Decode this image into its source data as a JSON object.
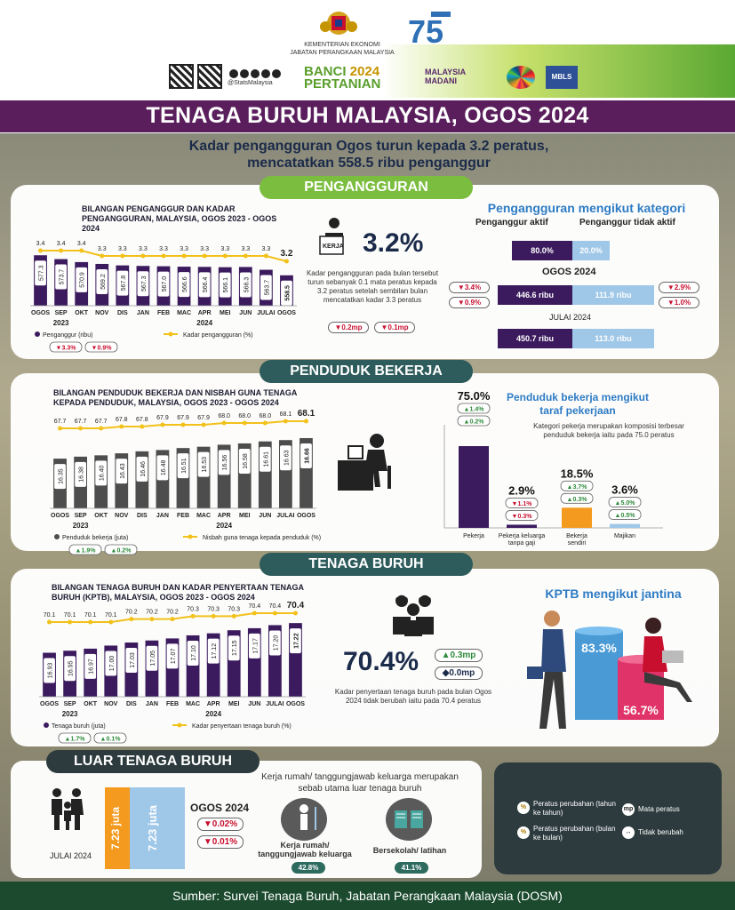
{
  "header": {
    "org_line1": "KEMENTERIAN EKONOMI",
    "org_line2": "JABATAN PERANGKAAN MALAYSIA",
    "dosm75": "75",
    "social": "@StatsMalaysia",
    "banci_line1": "BANCI",
    "banci_year": "2024",
    "banci_line2": "PERTANIAN",
    "madani_line1": "MALAYSIA",
    "madani_line2": "MADANI",
    "mbls": "MBLS"
  },
  "title": "TENAGA BURUH MALAYSIA, OGOS 2024",
  "subtitle_line1": "Kadar pengangguran Ogos turun kepada 3.2 peratus,",
  "subtitle_line2": "mencatatkan 558.5 ribu penganggur",
  "colors": {
    "purple": "#3b1b5e",
    "gray": "#4d4d4d",
    "yellow": "#f2c11a",
    "green_pill": "#7bbd3f",
    "teal_pill": "#2e5b5b",
    "light_blue": "#9fc7e8",
    "orange": "#f49a1e",
    "blue_person": "#4a9ad6",
    "pink": "#e0336a"
  },
  "sections": {
    "penganggur": "PENGANGGURAN",
    "bekerja": "PENDUDUK BEKERJA",
    "buruh": "TENAGA BURUH",
    "luar": "LUAR TENAGA BURUH"
  },
  "chart_data": [
    {
      "type": "bar+line",
      "title": "BILANGAN PENGANGGUR DAN KADAR PENGANGGURAN, MALAYSIA, OGOS 2023 - OGOS 2024",
      "categories": [
        "OGOS",
        "SEP",
        "OKT",
        "NOV",
        "DIS",
        "JAN",
        "FEB",
        "MAC",
        "APR",
        "MEI",
        "JUN",
        "JULAI",
        "OGOS"
      ],
      "year_labels": [
        "2023",
        "2024"
      ],
      "bar_series": {
        "name": "Penganggur (ribu)",
        "values": [
          577.3,
          573.7,
          570.9,
          569.2,
          567.8,
          567.3,
          567.0,
          566.6,
          566.4,
          566.1,
          566.3,
          563.7,
          558.5
        ],
        "labels": [
          "577.3",
          "573.7",
          "570.9",
          "569.2",
          "567.8",
          "567.3",
          "567.0",
          "566.6",
          "566.4",
          "566.1",
          "566.3",
          "563.7",
          "558.5"
        ]
      },
      "line_series": {
        "name": "Kadar pengangguran (%)",
        "values": [
          3.4,
          3.4,
          3.4,
          3.3,
          3.3,
          3.3,
          3.3,
          3.3,
          3.3,
          3.3,
          3.3,
          3.3,
          3.2
        ],
        "labels": [
          "3.4",
          "3.4",
          "3.4",
          "3.3",
          "3.3",
          "3.3",
          "3.3",
          "3.3",
          "3.3",
          "3.3",
          "3.3",
          "3.3",
          "3.2"
        ]
      },
      "badges": [
        {
          "dir": "down",
          "text": "3.3%"
        },
        {
          "dir": "down",
          "text": "0.9%"
        }
      ]
    },
    {
      "type": "bar+line",
      "title": "BILANGAN PENDUDUK BEKERJA DAN NISBAH GUNA TENAGA KEPADA PENDUDUK, MALAYSIA, OGOS 2023 - OGOS 2024",
      "categories": [
        "OGOS",
        "SEP",
        "OKT",
        "NOV",
        "DIS",
        "JAN",
        "FEB",
        "MAC",
        "APR",
        "MEI",
        "JUN",
        "JULAI",
        "OGOS"
      ],
      "year_labels": [
        "2023",
        "2024"
      ],
      "bar_series": {
        "name": "Penduduk bekerja (juta)",
        "values": [
          16.35,
          16.38,
          16.4,
          16.43,
          16.46,
          16.48,
          16.51,
          16.53,
          16.56,
          16.58,
          16.61,
          16.63,
          16.66
        ],
        "labels": [
          "16.35",
          "16.38",
          "16.40",
          "16.43",
          "16.46",
          "16.48",
          "16.51",
          "16.53",
          "16.56",
          "16.58",
          "16.61",
          "16.63",
          "16.66"
        ]
      },
      "line_series": {
        "name": "Nisbah guna tenaga kepada penduduk (%)",
        "values": [
          67.7,
          67.7,
          67.7,
          67.8,
          67.8,
          67.9,
          67.9,
          67.9,
          68.0,
          68.0,
          68.0,
          68.1,
          68.1
        ],
        "labels": [
          "67.7",
          "67.7",
          "67.7",
          "67.8",
          "67.8",
          "67.9",
          "67.9",
          "67.9",
          "68.0",
          "68.0",
          "68.0",
          "68.1",
          "68.1"
        ]
      },
      "badges": [
        {
          "dir": "up",
          "text": "1.9%"
        },
        {
          "dir": "up",
          "text": "0.2%"
        }
      ]
    },
    {
      "type": "bar+line",
      "title": "BILANGAN TENAGA BURUH DAN KADAR PENYERTAAN TENAGA BURUH (KPTB), MALAYSIA, OGOS 2023 - OGOS 2024",
      "categories": [
        "OGOS",
        "SEP",
        "OKT",
        "NOV",
        "DIS",
        "JAN",
        "FEB",
        "MAC",
        "APR",
        "MEI",
        "JUN",
        "JULAI",
        "OGOS"
      ],
      "year_labels": [
        "2023",
        "2024"
      ],
      "bar_series": {
        "name": "Tenaga buruh (juta)",
        "values": [
          16.93,
          16.95,
          16.97,
          17.0,
          17.03,
          17.05,
          17.07,
          17.1,
          17.12,
          17.15,
          17.17,
          17.2,
          17.22
        ],
        "labels": [
          "16.93",
          "16.95",
          "16.97",
          "17.00",
          "17.03",
          "17.05",
          "17.07",
          "17.10",
          "17.12",
          "17.15",
          "17.17",
          "17.20",
          "17.22"
        ]
      },
      "line_series": {
        "name": "Kadar penyertaan tenaga buruh (%)",
        "values": [
          70.1,
          70.1,
          70.1,
          70.1,
          70.2,
          70.2,
          70.2,
          70.3,
          70.3,
          70.3,
          70.4,
          70.4,
          70.4
        ],
        "labels": [
          "70.1",
          "70.1",
          "70.1",
          "70.1",
          "70.2",
          "70.2",
          "70.2",
          "70.3",
          "70.3",
          "70.3",
          "70.4",
          "70.4",
          "70.4"
        ]
      },
      "badges": [
        {
          "dir": "up",
          "text": "1.7%"
        },
        {
          "dir": "up",
          "text": "0.1%"
        }
      ]
    }
  ],
  "unemp": {
    "rate": "3.2%",
    "desc": "Kadar pengangguran pada bulan tersebut turun sebanyak 0.1 mata peratus kepada 3.2 peratus setelah sembilan bulan mencatatkan kadar 3.3 peratus",
    "badge1": "0.2mp",
    "badge2": "0.1mp",
    "kerja": "KERJA",
    "cat_title": "Pengangguran mengikut kategori",
    "active_label": "Penganggur aktif",
    "inactive_label": "Penganggur tidak aktif",
    "active_pct": "80.0%",
    "inactive_pct": "20.0%",
    "aug_label": "OGOS 2024",
    "aug_active": "446.6 ribu",
    "aug_inactive": "111.9 ribu",
    "jul_label": "JULAI 2024",
    "jul_active": "450.7 ribu",
    "jul_inactive": "113.0 ribu",
    "left_b1": "3.4%",
    "left_b2": "0.9%",
    "right_b1": "2.9%",
    "right_b2": "1.0%"
  },
  "emp": {
    "cat_title_1": "Penduduk bekerja mengikut",
    "cat_title_2": "taraf pekerjaan",
    "desc": "Kategori pekerja merupakan komposisi terbesar penduduk bekerja iaitu pada 75.0 peratus",
    "bars": [
      {
        "pct": "75.0%",
        "value": 75.0,
        "label": "Pekerja",
        "color": "#3b1b5e",
        "b1": {
          "dir": "up",
          "t": "1.4%"
        },
        "b2": {
          "dir": "up",
          "t": "0.2%"
        }
      },
      {
        "pct": "2.9%",
        "value": 2.9,
        "label": "Pekerja keluarga tanpa gaji",
        "color": "#3b1b5e",
        "b1": {
          "dir": "down",
          "t": "1.1%"
        },
        "b2": {
          "dir": "down",
          "t": "0.3%"
        }
      },
      {
        "pct": "18.5%",
        "value": 18.5,
        "label": "Bekerja sendiri",
        "color": "#f49a1e",
        "b1": {
          "dir": "up",
          "t": "3.7%"
        },
        "b2": {
          "dir": "up",
          "t": "0.3%"
        }
      },
      {
        "pct": "3.6%",
        "value": 3.6,
        "label": "Majikan",
        "color": "#9fc7e8",
        "b1": {
          "dir": "up",
          "t": "5.0%"
        },
        "b2": {
          "dir": "up",
          "t": "0.5%"
        }
      }
    ]
  },
  "lf": {
    "rate": "70.4%",
    "badge1": "0.3mp",
    "badge2": "0.0mp",
    "desc": "Kadar penyertaan tenaga buruh pada bulan Ogos 2024 tidak berubah iaitu pada 70.4 peratus",
    "gender_title": "KPTB mengikut jantina",
    "male": "83.3%",
    "male_value": 83.3,
    "female": "56.7%",
    "female_value": 56.7
  },
  "olf": {
    "jul_label": "JULAI 2024",
    "jul_val": "7.23 juta",
    "aug_val": "7.23 juta",
    "aug_label": "OGOS 2024",
    "b1": "0.02%",
    "b2": "0.01%",
    "reason_title": "Kerja rumah/ tanggungjawab keluarga merupakan sebab utama luar tenaga buruh",
    "r1_label": "Kerja rumah/ tanggungjawab keluarga",
    "r1_pct": "42.8%",
    "r2_label": "Bersekolah/ latihan",
    "r2_pct": "41.1%"
  },
  "legend": {
    "l1": "Peratus perubahan (tahun ke tahun)",
    "l2": "Peratus perubahan (bulan ke bulan)",
    "l3": "Mata peratus",
    "l4": "Tidak berubah",
    "mp": "mp"
  },
  "footer": "Sumber: Survei Tenaga Buruh, Jabatan Perangkaan Malaysia (DOSM)"
}
